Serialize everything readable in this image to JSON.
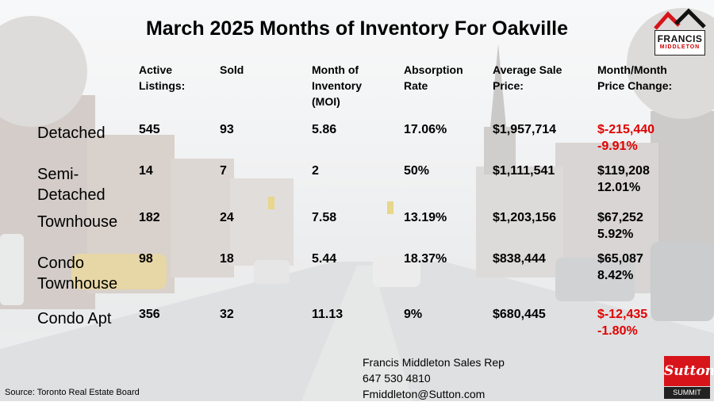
{
  "title": "March 2025 Months of Inventory For Oakville",
  "logo": {
    "line1": "FRANCIS",
    "line2": "MIDDLETON"
  },
  "headers": [
    "Active Listings:",
    "Sold",
    "Month of Inventory (MOI)",
    "Absorption Rate",
    "Average Sale Price:",
    "Month/Month Price Change:"
  ],
  "rows": [
    {
      "label": "Detached",
      "active": "545",
      "sold": "93",
      "moi": "5.86",
      "absorption": "17.06%",
      "avg_price": "$1,957,714",
      "change_amount": "$-215,440",
      "change_pct": "-9.91%",
      "negative": true
    },
    {
      "label": "Semi-Detached",
      "active": "14",
      "sold": "7",
      "moi": "2",
      "absorption": "50%",
      "avg_price": "$1,111,541",
      "change_amount": "$119,208",
      "change_pct": "12.01%",
      "negative": false
    },
    {
      "label": "Townhouse",
      "active": "182",
      "sold": "24",
      "moi": "7.58",
      "absorption": "13.19%",
      "avg_price": "$1,203,156",
      "change_amount": "$67,252",
      "change_pct": "5.92%",
      "negative": false
    },
    {
      "label": "Condo Townhouse",
      "active": "98",
      "sold": "18",
      "moi": "5.44",
      "absorption": "18.37%",
      "avg_price": "$838,444",
      "change_amount": "$65,087",
      "change_pct": "8.42%",
      "negative": false
    },
    {
      "label": "Condo Apt",
      "active": "356",
      "sold": "32",
      "moi": "11.13",
      "absorption": "9%",
      "avg_price": "$680,445",
      "change_amount": "$-12,435",
      "change_pct": "-1.80%",
      "negative": true
    }
  ],
  "source": "Source: Toronto Real Estate Board",
  "contact": {
    "name": "Francis Middleton Sales Rep",
    "phone": "647 530 4810",
    "email": "Fmiddleton@Sutton.com"
  },
  "brand": {
    "name": "Sutton",
    "sub": "SUMMIT"
  },
  "colors": {
    "negative": "#e00000",
    "brand_red": "#d7141a"
  }
}
